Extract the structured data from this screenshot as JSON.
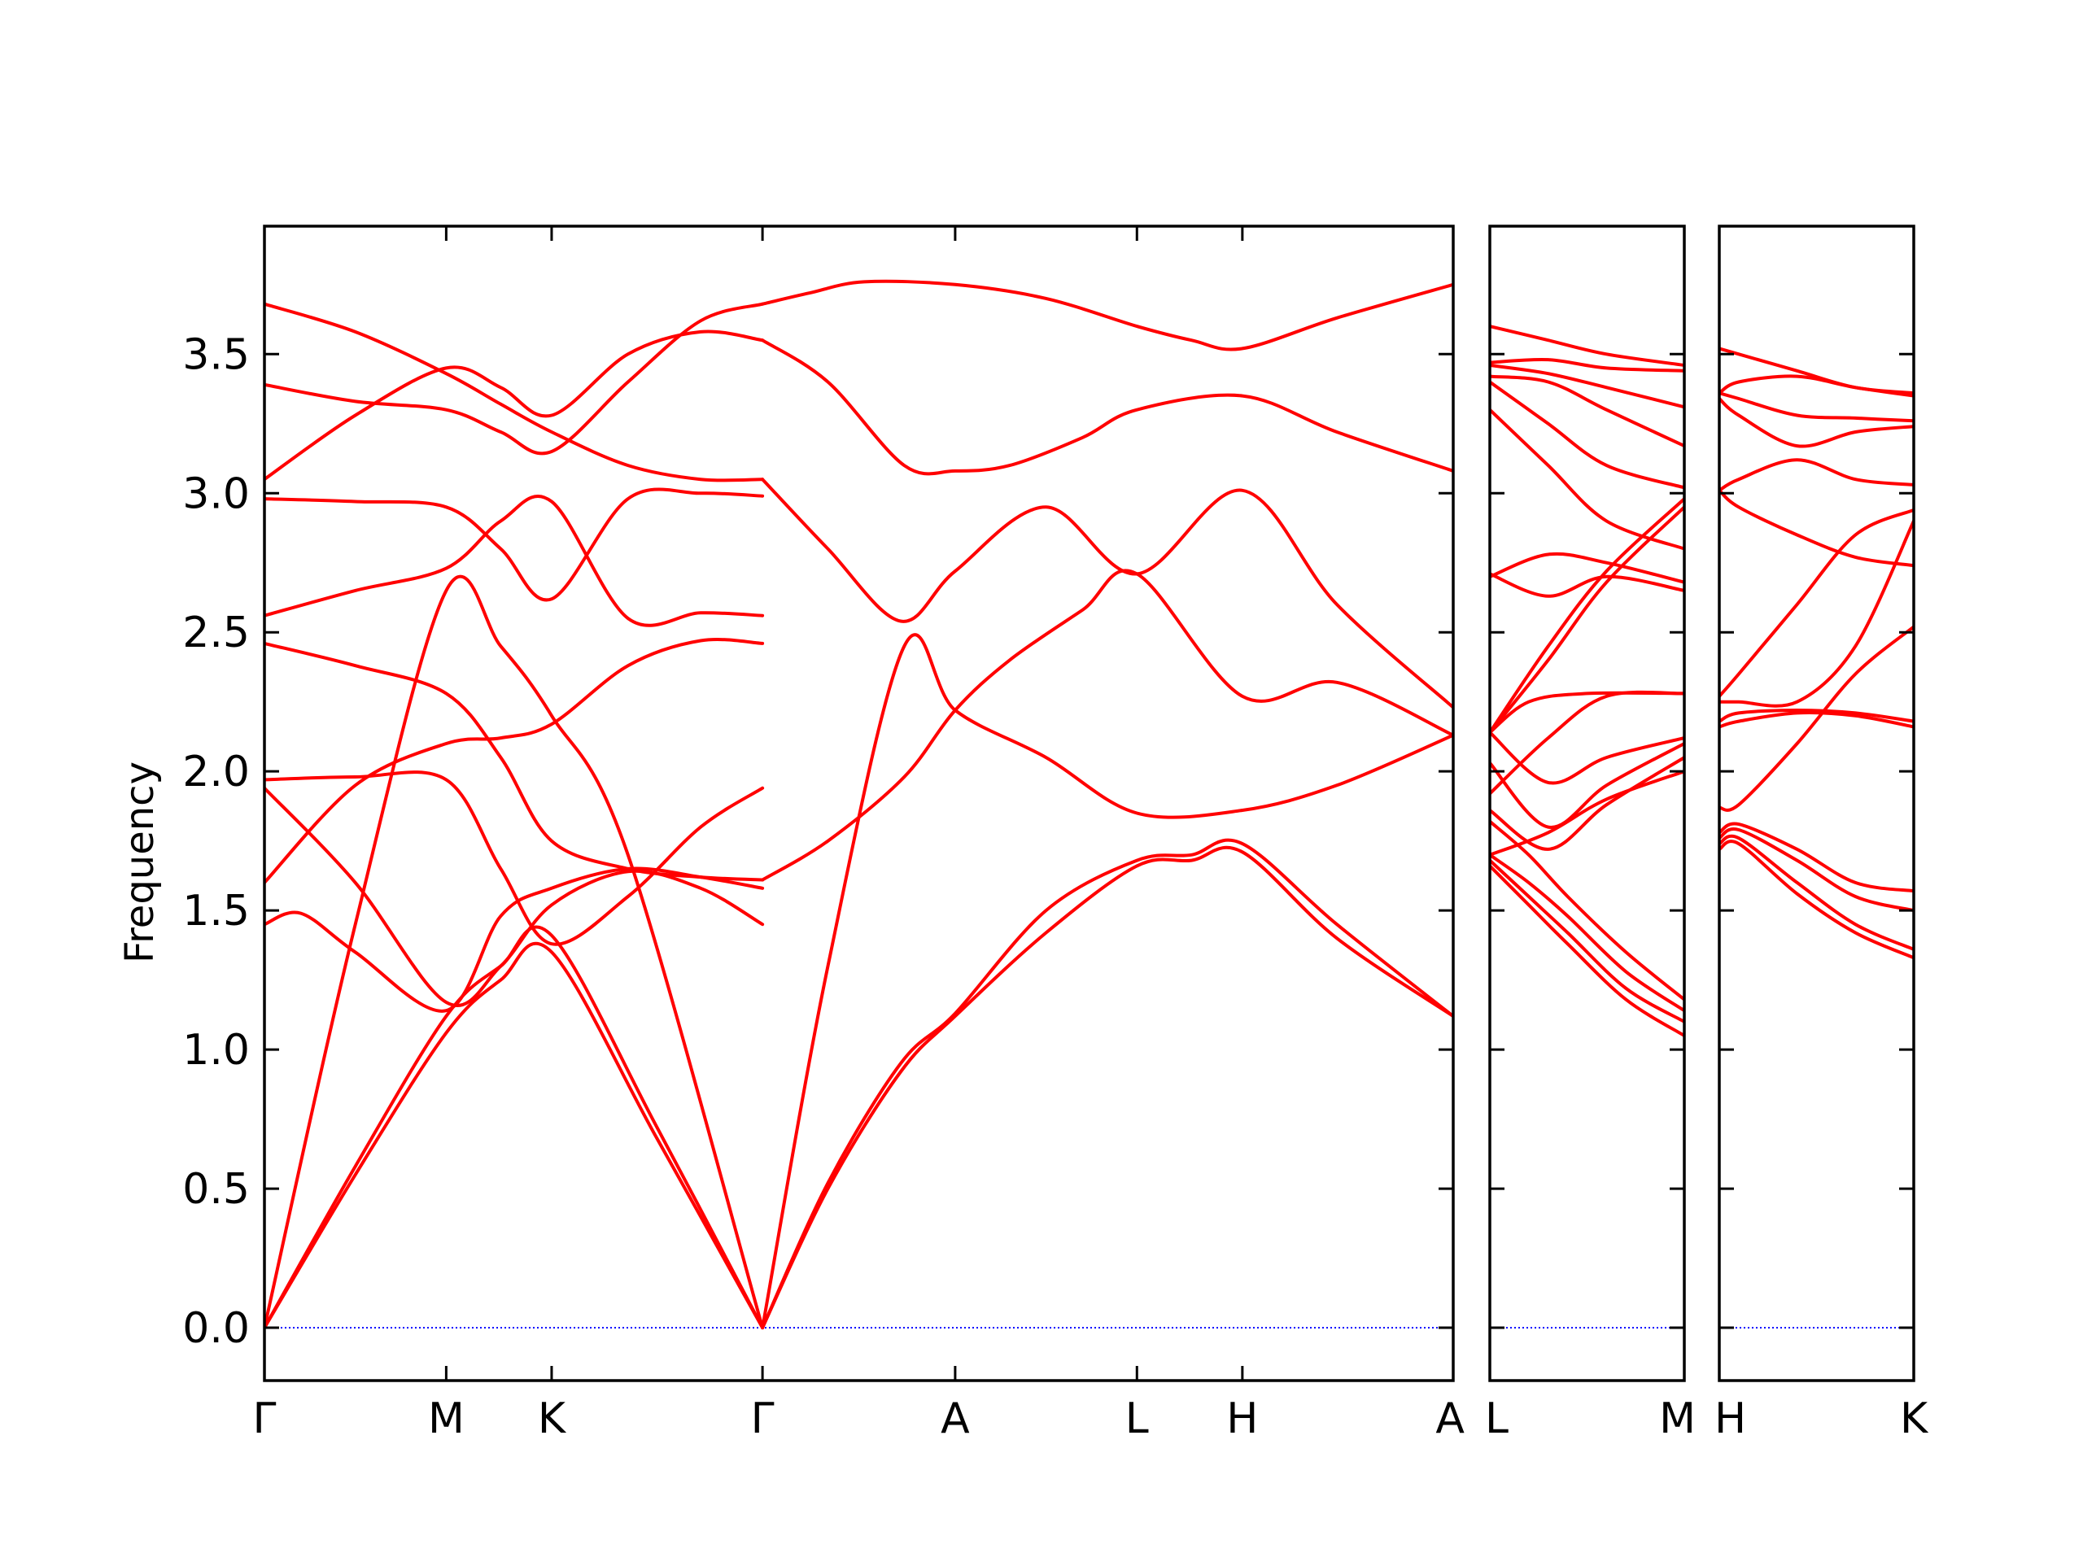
{
  "chart_data": {
    "type": "line",
    "ylabel": "Frequency",
    "ylim": [
      -0.19,
      3.96
    ],
    "yticks": [
      "0.0",
      "0.5",
      "1.0",
      "1.5",
      "2.0",
      "2.5",
      "3.0",
      "3.5"
    ],
    "yticks_values": [
      0.0,
      0.5,
      1.0,
      1.5,
      2.0,
      2.5,
      3.0,
      3.5
    ],
    "line_color": "#ff0000",
    "zero_line_color": "#0000ff",
    "grid": false,
    "panels": [
      {
        "kpoints": [
          "Γ",
          "M",
          "K",
          "Γ",
          "A",
          "L",
          "H",
          "A"
        ],
        "kpos": [
          0,
          0.5,
          0.79,
          1.37,
          1.9,
          2.4,
          2.69,
          3.27
        ],
        "series": [
          {
            "x": [
              0,
              0.25,
              0.5,
              0.65,
              0.79,
              1.08,
              1.37
            ],
            "y": [
              0.0,
              0.55,
              1.06,
              1.25,
              1.35,
              0.68,
              0.0
            ]
          },
          {
            "x": [
              0,
              0.25,
              0.5,
              0.65,
              0.79,
              1.08,
              1.37
            ],
            "y": [
              0.0,
              0.58,
              1.12,
              1.3,
              1.41,
              0.72,
              0.0
            ]
          },
          {
            "x": [
              0,
              0.25,
              0.5,
              0.65,
              0.79,
              1.0,
              1.37
            ],
            "y": [
              0.0,
              1.45,
              2.65,
              2.45,
              2.2,
              1.7,
              0.0
            ]
          },
          {
            "x": [
              1.37,
              1.55,
              1.75,
              1.9,
              2.15,
              2.4,
              2.55,
              2.69,
              2.95,
              3.27
            ],
            "y": [
              0.0,
              0.5,
              0.92,
              1.12,
              1.42,
              1.66,
              1.68,
              1.71,
              1.4,
              1.12
            ]
          },
          {
            "x": [
              1.37,
              1.55,
              1.75,
              1.9,
              2.15,
              2.4,
              2.55,
              2.69,
              2.95,
              3.27
            ],
            "y": [
              0.0,
              0.52,
              0.95,
              1.13,
              1.5,
              1.68,
              1.7,
              1.74,
              1.45,
              1.12
            ]
          },
          {
            "x": [
              1.37,
              1.55,
              1.76,
              1.9,
              2.15,
              2.4,
              2.69,
              2.95,
              3.27
            ],
            "y": [
              0.0,
              1.3,
              2.45,
              2.22,
              2.05,
              1.85,
              1.86,
              1.95,
              2.13
            ]
          },
          {
            "x": [
              0,
              0.1,
              0.25,
              0.5,
              0.65,
              0.79,
              1.0,
              1.2,
              1.37
            ],
            "y": [
              1.45,
              1.49,
              1.35,
              1.14,
              1.48,
              1.58,
              1.65,
              1.62,
              1.58
            ]
          },
          {
            "x": [
              0,
              0.25,
              0.5,
              0.65,
              0.79,
              1.0,
              1.2,
              1.37
            ],
            "y": [
              1.6,
              1.95,
              2.1,
              2.12,
              2.17,
              2.38,
              2.47,
              2.46
            ]
          },
          {
            "x": [
              0,
              0.25,
              0.5,
              0.65,
              0.79,
              1.0,
              1.2,
              1.37
            ],
            "y": [
              1.94,
              1.6,
              1.17,
              1.3,
              1.52,
              1.64,
              1.58,
              1.45
            ]
          },
          {
            "x": [
              0,
              0.25,
              0.5,
              0.65,
              0.79,
              1.0,
              1.2,
              1.37
            ],
            "y": [
              1.97,
              1.98,
              1.97,
              1.65,
              1.38,
              1.55,
              1.8,
              1.94
            ]
          },
          {
            "x": [
              0,
              0.25,
              0.5,
              0.65,
              0.79,
              1.0,
              1.2,
              1.37
            ],
            "y": [
              2.46,
              2.38,
              2.28,
              2.05,
              1.75,
              1.65,
              1.62,
              1.61
            ]
          },
          {
            "x": [
              0,
              0.25,
              0.5,
              0.65,
              0.79,
              1.0,
              1.2,
              1.37
            ],
            "y": [
              2.56,
              2.65,
              2.73,
              2.9,
              2.97,
              2.55,
              2.57,
              2.56
            ]
          },
          {
            "x": [
              0,
              0.25,
              0.5,
              0.65,
              0.79,
              1.0,
              1.2,
              1.37
            ],
            "y": [
              2.98,
              2.97,
              2.95,
              2.8,
              2.62,
              2.98,
              3.0,
              2.99
            ]
          },
          {
            "x": [
              0,
              0.25,
              0.5,
              0.65,
              0.79,
              1.0,
              1.2,
              1.37
            ],
            "y": [
              3.05,
              3.28,
              3.45,
              3.38,
              3.28,
              3.5,
              3.58,
              3.55
            ]
          },
          {
            "x": [
              0,
              0.25,
              0.5,
              0.65,
              0.79,
              1.0,
              1.2,
              1.37
            ],
            "y": [
              3.39,
              3.33,
              3.3,
              3.22,
              3.15,
              3.4,
              3.62,
              3.68
            ]
          },
          {
            "x": [
              0,
              0.25,
              0.5,
              0.65,
              0.79,
              1.0,
              1.2,
              1.37
            ],
            "y": [
              3.68,
              3.58,
              3.43,
              3.32,
              3.22,
              3.1,
              3.05,
              3.05
            ]
          },
          {
            "x": [
              1.37,
              1.5,
              1.65,
              1.9,
              2.15,
              2.4,
              2.55,
              2.69,
              2.95,
              3.27
            ],
            "y": [
              3.68,
              3.72,
              3.76,
              3.75,
              3.7,
              3.6,
              3.55,
              3.52,
              3.63,
              3.75
            ]
          },
          {
            "x": [
              1.37,
              1.55,
              1.75,
              1.9,
              2.15,
              2.4,
              2.69,
              2.95,
              3.27
            ],
            "y": [
              3.05,
              2.8,
              2.54,
              2.72,
              2.95,
              2.71,
              3.01,
              2.6,
              2.23
            ]
          },
          {
            "x": [
              1.37,
              1.55,
              1.76,
              1.9,
              2.05,
              2.25,
              2.4,
              2.69,
              2.95,
              3.27
            ],
            "y": [
              3.55,
              3.4,
              3.1,
              3.08,
              3.1,
              3.2,
              3.3,
              3.35,
              3.22,
              3.08
            ]
          },
          {
            "x": [
              1.37,
              1.55,
              1.76,
              1.9,
              2.05,
              2.25,
              2.4,
              2.69,
              2.95,
              3.27
            ],
            "y": [
              1.61,
              1.75,
              1.98,
              2.22,
              2.4,
              2.58,
              2.71,
              2.27,
              2.32,
              2.13
            ]
          }
        ]
      },
      {
        "kpoints": [
          "L",
          "M"
        ],
        "kpos": [
          0,
          0.5
        ],
        "series": [
          {
            "x": [
              0,
              0.1,
              0.2,
              0.35,
              0.5
            ],
            "y": [
              1.66,
              1.52,
              1.38,
              1.18,
              1.05
            ]
          },
          {
            "x": [
              0,
              0.1,
              0.2,
              0.35,
              0.5
            ],
            "y": [
              1.68,
              1.55,
              1.42,
              1.22,
              1.1
            ]
          },
          {
            "x": [
              0,
              0.1,
              0.2,
              0.35,
              0.5
            ],
            "y": [
              1.7,
              1.6,
              1.48,
              1.28,
              1.14
            ]
          },
          {
            "x": [
              0,
              0.1,
              0.2,
              0.35,
              0.5
            ],
            "y": [
              1.82,
              1.7,
              1.55,
              1.35,
              1.18
            ]
          },
          {
            "x": [
              0,
              0.15,
              0.3,
              0.5
            ],
            "y": [
              1.7,
              1.78,
              1.9,
              2.0
            ]
          },
          {
            "x": [
              0,
              0.15,
              0.3,
              0.5
            ],
            "y": [
              1.86,
              1.72,
              1.88,
              2.05
            ]
          },
          {
            "x": [
              0,
              0.15,
              0.3,
              0.5
            ],
            "y": [
              2.03,
              1.8,
              1.95,
              2.1
            ]
          },
          {
            "x": [
              0,
              0.15,
              0.3,
              0.5
            ],
            "y": [
              2.14,
              1.96,
              2.05,
              2.12
            ]
          },
          {
            "x": [
              0,
              0.15,
              0.3,
              0.5
            ],
            "y": [
              1.92,
              2.12,
              2.27,
              2.28
            ]
          },
          {
            "x": [
              0,
              0.1,
              0.25,
              0.5
            ],
            "y": [
              2.14,
              2.25,
              2.28,
              2.28
            ]
          },
          {
            "x": [
              0,
              0.15,
              0.3,
              0.5
            ],
            "y": [
              2.71,
              2.63,
              2.7,
              2.65
            ]
          },
          {
            "x": [
              0,
              0.15,
              0.3,
              0.5
            ],
            "y": [
              2.7,
              2.78,
              2.75,
              2.68
            ]
          },
          {
            "x": [
              0,
              0.15,
              0.3,
              0.5
            ],
            "y": [
              2.14,
              2.4,
              2.68,
              2.95
            ]
          },
          {
            "x": [
              0,
              0.15,
              0.3,
              0.5
            ],
            "y": [
              2.14,
              2.45,
              2.72,
              2.98
            ]
          },
          {
            "x": [
              0,
              0.15,
              0.3,
              0.5
            ],
            "y": [
              3.3,
              3.1,
              2.9,
              2.8
            ]
          },
          {
            "x": [
              0,
              0.15,
              0.3,
              0.5
            ],
            "y": [
              3.4,
              3.25,
              3.1,
              3.02
            ]
          },
          {
            "x": [
              0,
              0.15,
              0.3,
              0.5
            ],
            "y": [
              3.42,
              3.4,
              3.3,
              3.17
            ]
          },
          {
            "x": [
              0,
              0.15,
              0.3,
              0.5
            ],
            "y": [
              3.46,
              3.43,
              3.38,
              3.31
            ]
          },
          {
            "x": [
              0,
              0.15,
              0.3,
              0.5
            ],
            "y": [
              3.47,
              3.48,
              3.45,
              3.44
            ]
          },
          {
            "x": [
              0,
              0.15,
              0.3,
              0.5
            ],
            "y": [
              3.6,
              3.55,
              3.5,
              3.46
            ]
          }
        ]
      },
      {
        "kpoints": [
          "H",
          "K"
        ],
        "kpos": [
          0,
          0.5
        ],
        "series": [
          {
            "x": [
              0,
              0.05,
              0.2,
              0.35,
              0.5
            ],
            "y": [
              1.72,
              1.74,
              1.56,
              1.42,
              1.33
            ]
          },
          {
            "x": [
              0,
              0.05,
              0.2,
              0.35,
              0.5
            ],
            "y": [
              1.74,
              1.76,
              1.6,
              1.45,
              1.36
            ]
          },
          {
            "x": [
              0,
              0.05,
              0.2,
              0.35,
              0.5
            ],
            "y": [
              1.76,
              1.79,
              1.68,
              1.55,
              1.5
            ]
          },
          {
            "x": [
              0,
              0.05,
              0.2,
              0.35,
              0.5
            ],
            "y": [
              1.78,
              1.81,
              1.72,
              1.6,
              1.57
            ]
          },
          {
            "x": [
              0,
              0.05,
              0.2,
              0.35,
              0.5
            ],
            "y": [
              1.87,
              1.88,
              2.1,
              2.35,
              2.52
            ]
          },
          {
            "x": [
              0,
              0.05,
              0.2,
              0.35,
              0.5
            ],
            "y": [
              2.16,
              2.18,
              2.21,
              2.2,
              2.16
            ]
          },
          {
            "x": [
              0,
              0.05,
              0.2,
              0.35,
              0.5
            ],
            "y": [
              2.18,
              2.21,
              2.22,
              2.21,
              2.18
            ]
          },
          {
            "x": [
              0,
              0.05,
              0.2,
              0.35,
              0.5
            ],
            "y": [
              2.25,
              2.25,
              2.25,
              2.45,
              2.9
            ]
          },
          {
            "x": [
              0,
              0.05,
              0.2,
              0.35,
              0.5
            ],
            "y": [
              2.27,
              2.35,
              2.6,
              2.85,
              2.94
            ]
          },
          {
            "x": [
              0,
              0.05,
              0.2,
              0.35,
              0.5
            ],
            "y": [
              3.01,
              2.95,
              2.85,
              2.77,
              2.74
            ]
          },
          {
            "x": [
              0,
              0.05,
              0.2,
              0.35,
              0.5
            ],
            "y": [
              3.01,
              3.05,
              3.12,
              3.05,
              3.03
            ]
          },
          {
            "x": [
              0,
              0.05,
              0.2,
              0.35,
              0.5
            ],
            "y": [
              3.34,
              3.28,
              3.17,
              3.22,
              3.24
            ]
          },
          {
            "x": [
              0,
              0.05,
              0.2,
              0.35,
              0.5
            ],
            "y": [
              3.36,
              3.34,
              3.28,
              3.27,
              3.26
            ]
          },
          {
            "x": [
              0,
              0.05,
              0.2,
              0.35,
              0.5
            ],
            "y": [
              3.36,
              3.4,
              3.42,
              3.38,
              3.35
            ]
          },
          {
            "x": [
              0,
              0.05,
              0.2,
              0.35,
              0.5
            ],
            "y": [
              3.52,
              3.5,
              3.44,
              3.38,
              3.36
            ]
          }
        ]
      }
    ]
  }
}
